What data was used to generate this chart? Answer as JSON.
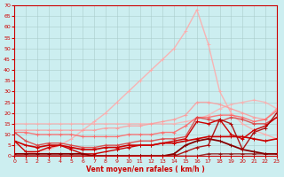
{
  "bg_color": "#cceef0",
  "grid_color": "#aacccc",
  "xlabel": "Vent moyen/en rafales ( km/h )",
  "xlabel_color": "#cc0000",
  "tick_color": "#cc0000",
  "xlim": [
    0,
    23
  ],
  "ylim": [
    0,
    70
  ],
  "yticks": [
    0,
    5,
    10,
    15,
    20,
    25,
    30,
    35,
    40,
    45,
    50,
    55,
    60,
    65,
    70
  ],
  "xticks": [
    0,
    1,
    2,
    3,
    4,
    5,
    6,
    7,
    8,
    9,
    10,
    11,
    12,
    13,
    14,
    15,
    16,
    17,
    18,
    19,
    20,
    21,
    22,
    23
  ],
  "series": [
    {
      "x": [
        0,
        1,
        2,
        3,
        4,
        5,
        6,
        7,
        8,
        9,
        10,
        11,
        12,
        13,
        14,
        15,
        16,
        17,
        18,
        19,
        20,
        21,
        22,
        23
      ],
      "y": [
        0,
        1,
        2,
        3,
        5,
        8,
        12,
        16,
        20,
        25,
        30,
        35,
        40,
        45,
        50,
        58,
        68,
        52,
        30,
        20,
        15,
        12,
        10,
        8
      ],
      "color": "#ffaaaa",
      "lw": 1.0,
      "alpha": 0.85,
      "marker": "+"
    },
    {
      "x": [
        0,
        1,
        2,
        3,
        4,
        5,
        6,
        7,
        8,
        9,
        10,
        11,
        12,
        13,
        14,
        15,
        16,
        17,
        18,
        19,
        20,
        21,
        22,
        23
      ],
      "y": [
        15,
        15,
        15,
        15,
        15,
        15,
        15,
        15,
        15,
        15,
        15,
        15,
        15,
        15,
        15,
        16,
        17,
        19,
        22,
        24,
        25,
        26,
        25,
        22
      ],
      "color": "#ffaaaa",
      "lw": 1.0,
      "alpha": 0.7,
      "marker": "+"
    },
    {
      "x": [
        0,
        1,
        2,
        3,
        4,
        5,
        6,
        7,
        8,
        9,
        10,
        11,
        12,
        13,
        14,
        15,
        16,
        17,
        18,
        19,
        20,
        21,
        22,
        23
      ],
      "y": [
        12,
        12,
        12,
        12,
        12,
        12,
        12,
        12,
        13,
        13,
        14,
        14,
        15,
        16,
        17,
        19,
        25,
        25,
        24,
        22,
        20,
        18,
        17,
        22
      ],
      "color": "#ff9999",
      "lw": 1.0,
      "alpha": 0.8,
      "marker": "+"
    },
    {
      "x": [
        0,
        1,
        2,
        3,
        4,
        5,
        6,
        7,
        8,
        9,
        10,
        11,
        12,
        13,
        14,
        15,
        16,
        17,
        18,
        19,
        20,
        21,
        22,
        23
      ],
      "y": [
        11,
        11,
        10,
        10,
        10,
        10,
        9,
        9,
        9,
        9,
        10,
        10,
        10,
        11,
        11,
        14,
        18,
        18,
        19,
        19,
        18,
        16,
        17,
        21
      ],
      "color": "#ff6666",
      "lw": 1.0,
      "alpha": 0.85,
      "marker": "+"
    },
    {
      "x": [
        0,
        1,
        2,
        3,
        4,
        5,
        6,
        7,
        8,
        9,
        10,
        11,
        12,
        13,
        14,
        15,
        16,
        17,
        18,
        19,
        20,
        21,
        22,
        23
      ],
      "y": [
        11,
        7,
        5,
        6,
        6,
        5,
        4,
        4,
        5,
        5,
        6,
        7,
        7,
        8,
        8,
        9,
        18,
        17,
        16,
        18,
        17,
        15,
        15,
        18
      ],
      "color": "#dd4444",
      "lw": 1.0,
      "alpha": 0.9,
      "marker": "+"
    },
    {
      "x": [
        0,
        1,
        2,
        3,
        4,
        5,
        6,
        7,
        8,
        9,
        10,
        11,
        12,
        13,
        14,
        15,
        16,
        17,
        18,
        19,
        20,
        21,
        22,
        23
      ],
      "y": [
        7,
        5,
        4,
        5,
        5,
        4,
        3,
        3,
        4,
        4,
        5,
        5,
        5,
        6,
        6,
        7,
        8,
        9,
        9,
        9,
        9,
        8,
        7,
        8
      ],
      "color": "#cc0000",
      "lw": 1.2,
      "alpha": 1.0,
      "marker": "+"
    },
    {
      "x": [
        0,
        1,
        2,
        3,
        4,
        5,
        6,
        7,
        8,
        9,
        10,
        11,
        12,
        13,
        14,
        15,
        16,
        17,
        18,
        19,
        20,
        21,
        22,
        23
      ],
      "y": [
        7,
        2,
        2,
        4,
        5,
        3,
        1,
        1,
        2,
        3,
        4,
        5,
        5,
        6,
        7,
        8,
        16,
        15,
        17,
        10,
        8,
        12,
        14,
        18
      ],
      "color": "#cc0000",
      "lw": 1.0,
      "alpha": 1.0,
      "marker": "+"
    },
    {
      "x": [
        0,
        1,
        2,
        3,
        4,
        5,
        6,
        7,
        8,
        9,
        10,
        11,
        12,
        13,
        14,
        15,
        16,
        17,
        18,
        19,
        20,
        21,
        22,
        23
      ],
      "y": [
        1,
        1,
        1,
        1,
        1,
        1,
        1,
        0,
        0,
        0,
        0,
        0,
        0,
        0,
        1,
        5,
        7,
        8,
        7,
        5,
        3,
        2,
        1,
        1
      ],
      "color": "#880000",
      "lw": 1.3,
      "alpha": 1.0,
      "marker": "+"
    },
    {
      "x": [
        0,
        1,
        2,
        3,
        4,
        5,
        6,
        7,
        8,
        9,
        10,
        11,
        12,
        13,
        14,
        15,
        16,
        17,
        18,
        19,
        20,
        21,
        22,
        23
      ],
      "y": [
        0,
        0,
        0,
        0,
        0,
        0,
        0,
        0,
        0,
        0,
        0,
        0,
        0,
        0,
        0,
        2,
        4,
        5,
        17,
        15,
        3,
        11,
        13,
        20
      ],
      "color": "#aa0000",
      "lw": 1.0,
      "alpha": 0.9,
      "marker": "+"
    },
    {
      "x": [
        0,
        1,
        2,
        3,
        4,
        5,
        6,
        7,
        8,
        9,
        10,
        11,
        12,
        13,
        14,
        15,
        16,
        17,
        18,
        19,
        20,
        21,
        22,
        23
      ],
      "y": [
        0,
        0,
        0,
        0,
        0,
        0,
        0,
        0,
        0,
        0,
        0,
        0,
        0,
        0,
        0,
        0,
        0,
        1,
        1,
        1,
        1,
        1,
        1,
        1
      ],
      "color": "#880000",
      "lw": 1.0,
      "alpha": 0.8,
      "marker": "+"
    }
  ]
}
